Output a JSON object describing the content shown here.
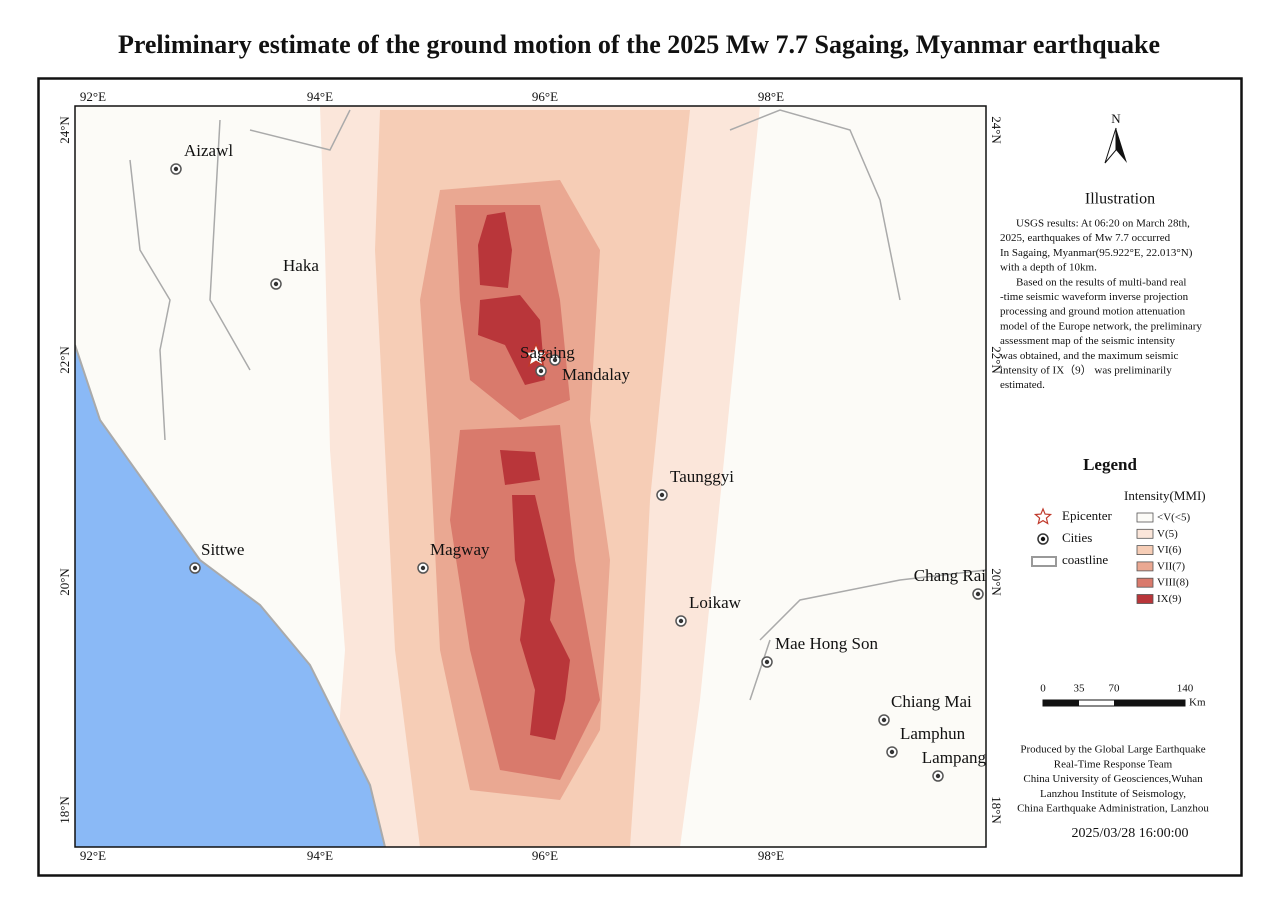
{
  "title": "Preliminary estimate of the ground motion of the 2025 Mw 7.7 Sagaing, Myanmar earthquake",
  "map": {
    "lon_labels_top": [
      "92°E",
      "94°E",
      "96°E",
      "98°E"
    ],
    "lon_labels_bottom": [
      "92°E",
      "94°E",
      "96°E",
      "98°E"
    ],
    "lat_labels_left": [
      "24°N",
      "22°N",
      "20°N",
      "18°N"
    ],
    "lat_labels_right": [
      "24°N",
      "22°N",
      "20°N",
      "18°N"
    ],
    "cities": [
      {
        "label": "Aizawl"
      },
      {
        "label": "Haka"
      },
      {
        "label": "Sagaing"
      },
      {
        "label": "Mandalay"
      },
      {
        "label": "Taunggyi"
      },
      {
        "label": "Sittwe"
      },
      {
        "label": "Magway"
      },
      {
        "label": "Loikaw"
      },
      {
        "label": "Chang Rai"
      },
      {
        "label": "Mae Hong Son"
      },
      {
        "label": "Chiang Mai"
      },
      {
        "label": "Lamphun"
      },
      {
        "label": "Lampang"
      }
    ]
  },
  "north": "N",
  "illustration": {
    "title": "Illustration",
    "paragraphs": [
      [
        "USGS results: At 06:20 on March 28th,",
        "2025, earthquakes of Mw 7.7 occurred",
        "In Sagaing, Myanmar(95.922°E, 22.013°N)",
        "with a depth of 10km."
      ],
      [
        "Based on the results of multi-band real",
        "-time seismic waveform inverse projection",
        "processing and ground motion attenuation",
        "model of the Europe network, the preliminary",
        "assessment map of the seismic intensity",
        "was obtained, and the maximum seismic",
        "intensity of IX（9） was preliminarily",
        "estimated."
      ]
    ]
  },
  "legend": {
    "title": "Legend",
    "symbols": [
      "Epicenter",
      "Cities",
      "coastline"
    ],
    "intensity_title": "Intensity(MMI)",
    "classes": [
      {
        "label": "<V(<5)",
        "color": "#fcfbf7"
      },
      {
        "label": "V(5)",
        "color": "#fbe6da"
      },
      {
        "label": "VI(6)",
        "color": "#f6cdb6"
      },
      {
        "label": "VII(7)",
        "color": "#eaa892"
      },
      {
        "label": "VIII(8)",
        "color": "#d97a6c"
      },
      {
        "label": "IX(9)",
        "color": "#b9363a"
      }
    ]
  },
  "scale": {
    "labels": [
      "0",
      "35",
      "70",
      "140"
    ],
    "unit": "Km"
  },
  "credits": [
    "Produced by the Global Large Earthquake",
    "Real-Time Response Team",
    "China University of Geosciences,Wuhan",
    "Lanzhou Institute of Seismology,",
    "China Earthquake Administration, Lanzhou"
  ],
  "date": "2025/03/28 16:00:00"
}
